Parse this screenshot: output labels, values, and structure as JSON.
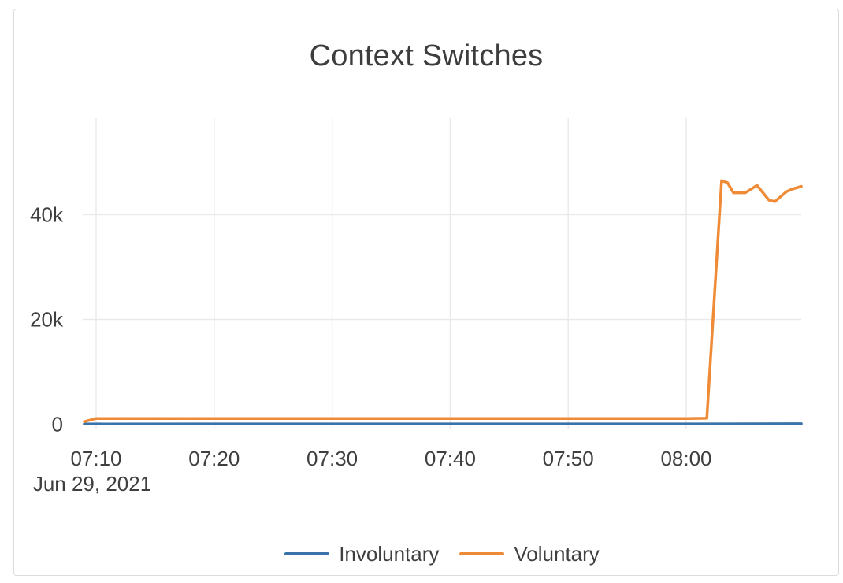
{
  "colors": {
    "background": "#ffffff",
    "card_border": "#dcdcdc",
    "grid": "#e9e9e9",
    "title_text": "#3d3d3d",
    "tick_text": "#3f3f3f",
    "involuntary": "#3a73a9",
    "voluntary": "#ef8b37"
  },
  "chart_data": {
    "type": "line",
    "title": "Context Switches",
    "grid": true,
    "legend_position": "bottom-center",
    "x_axis": {
      "date_annotation": "Jun 29, 2021",
      "ticks": [
        {
          "label": "07:10",
          "time": "07:10"
        },
        {
          "label": "07:20",
          "time": "07:20"
        },
        {
          "label": "07:30",
          "time": "07:30"
        },
        {
          "label": "07:40",
          "time": "07:40"
        },
        {
          "label": "07:50",
          "time": "07:50"
        },
        {
          "label": "08:00",
          "time": "08:00"
        }
      ],
      "range": [
        "07:09",
        "08:09:45"
      ]
    },
    "y_axis": {
      "ticks": [
        {
          "label": "0",
          "value": 0
        },
        {
          "label": "20k",
          "value": 20000
        },
        {
          "label": "40k",
          "value": 40000
        }
      ],
      "range": [
        0,
        58400
      ]
    },
    "series": [
      {
        "name": "Involuntary",
        "color": "#3a73a9",
        "points": [
          [
            "07:09",
            50
          ],
          [
            "07:20",
            60
          ],
          [
            "07:40",
            55
          ],
          [
            "08:00",
            60
          ],
          [
            "08:09:45",
            90
          ]
        ]
      },
      {
        "name": "Voluntary",
        "color": "#ef8b37",
        "points": [
          [
            "07:09",
            500
          ],
          [
            "07:10",
            1100
          ],
          [
            "07:20",
            1100
          ],
          [
            "07:30",
            1100
          ],
          [
            "07:40",
            1100
          ],
          [
            "07:50",
            1100
          ],
          [
            "08:00",
            1100
          ],
          [
            "08:01:45",
            1150
          ],
          [
            "08:03:00",
            46500
          ],
          [
            "08:03:30",
            46100
          ],
          [
            "08:04:00",
            44200
          ],
          [
            "08:05:00",
            44200
          ],
          [
            "08:06:00",
            45600
          ],
          [
            "08:07:00",
            42800
          ],
          [
            "08:07:30",
            42500
          ],
          [
            "08:08:30",
            44400
          ],
          [
            "08:09:00",
            44900
          ],
          [
            "08:09:45",
            45400
          ]
        ]
      }
    ]
  }
}
